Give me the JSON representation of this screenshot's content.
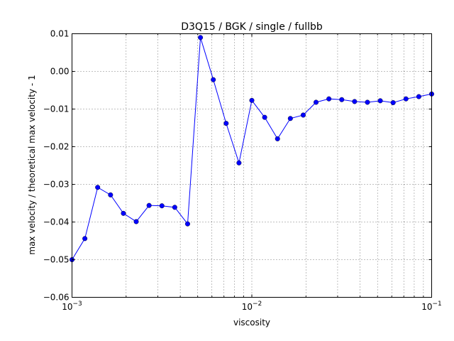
{
  "chart_data": {
    "type": "line",
    "title": "D3Q15 / BGK / single / fullbb",
    "xlabel": "viscosity",
    "ylabel": "max velocity / theoretical max velocity - 1",
    "xscale": "log",
    "xlim": [
      0.001,
      0.1
    ],
    "ylim": [
      -0.06,
      0.01
    ],
    "grid": true,
    "color": "#0000ff",
    "x_ticks": [
      {
        "value": 0.001,
        "base": "10",
        "exp": "−3"
      },
      {
        "value": 0.01,
        "base": "10",
        "exp": "−2"
      },
      {
        "value": 0.1,
        "base": "10",
        "exp": "−1"
      }
    ],
    "y_ticks": [
      {
        "value": 0.01,
        "label": "0.01"
      },
      {
        "value": 0.0,
        "label": "0.00"
      },
      {
        "value": -0.01,
        "label": "−0.01"
      },
      {
        "value": -0.02,
        "label": "−0.02"
      },
      {
        "value": -0.03,
        "label": "−0.03"
      },
      {
        "value": -0.04,
        "label": "−0.04"
      },
      {
        "value": -0.05,
        "label": "−0.05"
      },
      {
        "value": -0.06,
        "label": "−0.06"
      }
    ],
    "series": [
      {
        "x": [
          0.001,
          0.001179,
          0.001389,
          0.001638,
          0.001931,
          0.002276,
          0.002683,
          0.003162,
          0.003728,
          0.004394,
          0.00518,
          0.006105,
          0.007197,
          0.008483,
          0.01,
          0.011788,
          0.013895,
          0.016379,
          0.019307,
          0.022758,
          0.026827,
          0.031623,
          0.037276,
          0.04394,
          0.051795,
          0.061054,
          0.071969,
          0.084834,
          0.1
        ],
        "y": [
          -0.05,
          -0.0444,
          -0.0308,
          -0.0328,
          -0.0377,
          -0.0399,
          -0.0356,
          -0.0357,
          -0.0361,
          -0.0405,
          0.009,
          -0.0022,
          -0.0138,
          -0.0243,
          -0.0077,
          -0.0122,
          -0.0179,
          -0.0125,
          -0.0116,
          -0.0082,
          -0.0073,
          -0.0075,
          -0.008,
          -0.0082,
          -0.0078,
          -0.0083,
          -0.0073,
          -0.0067,
          -0.006
        ]
      }
    ]
  }
}
